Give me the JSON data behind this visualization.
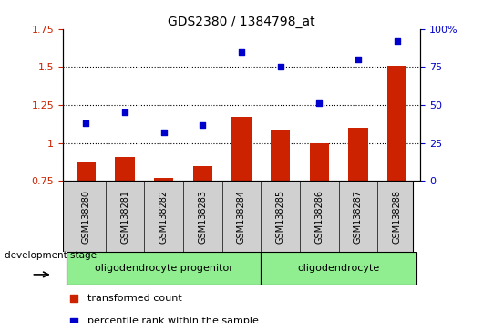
{
  "title": "GDS2380 / 1384798_at",
  "samples": [
    "GSM138280",
    "GSM138281",
    "GSM138282",
    "GSM138283",
    "GSM138284",
    "GSM138285",
    "GSM138286",
    "GSM138287",
    "GSM138288"
  ],
  "bar_values": [
    0.87,
    0.91,
    0.77,
    0.85,
    1.17,
    1.08,
    1.0,
    1.1,
    1.51
  ],
  "scatter_values": [
    1.13,
    1.2,
    1.07,
    1.12,
    1.6,
    1.5,
    1.26,
    1.55,
    1.67
  ],
  "bar_color": "#cc2200",
  "scatter_color": "#0000cc",
  "ylim_left": [
    0.75,
    1.75
  ],
  "ylim_right": [
    0,
    100
  ],
  "yticks_left": [
    0.75,
    1.0,
    1.25,
    1.5,
    1.75
  ],
  "yticks_right": [
    0,
    25,
    50,
    75,
    100
  ],
  "group_labels": [
    "oligodendrocyte progenitor",
    "oligodendrocyte"
  ],
  "group_progenitor_count": 5,
  "group_oligo_count": 4,
  "dev_stage_label": "development stage",
  "legend_bar_label": "transformed count",
  "legend_scatter_label": "percentile rank within the sample",
  "bar_bottom": 0.75,
  "dotted_lines": [
    1.0,
    1.25,
    1.5
  ],
  "bar_color_hex": "#cc2200",
  "scatter_color_hex": "#0000cc",
  "tick_color_left": "#cc2200",
  "tick_color_right": "#0000cc",
  "sample_box_color": "#d0d0d0",
  "group_box_color": "#90ee90"
}
